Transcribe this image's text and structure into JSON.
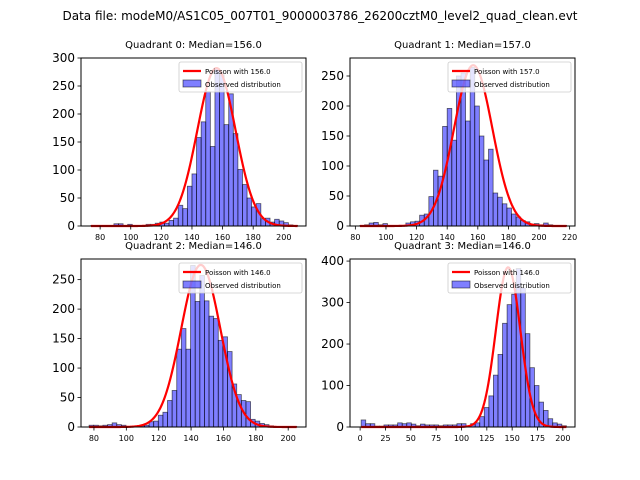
{
  "suptitle": "Data file: modeM0/AS1C05_007T01_9000003786_26200cztM0_level2_quad_clean.evt",
  "chart_data": [
    {
      "type": "bar",
      "title": "Quadrant 0: Median=156.0",
      "xlabel": "",
      "ylabel": "",
      "xlim": [
        67.5,
        214.5
      ],
      "ylim": [
        0,
        300
      ],
      "xticks": [
        80,
        100,
        120,
        140,
        160,
        180,
        200
      ],
      "yticks": [
        0,
        50,
        100,
        150,
        200,
        250,
        300
      ],
      "legend": {
        "position": "top-right",
        "entries": [
          "Poisson with 156.0",
          "Observed distribution"
        ]
      },
      "bin_width": 3,
      "bin_start": 74,
      "counts": [
        1,
        1,
        1,
        1,
        1,
        4,
        4,
        1,
        3,
        1,
        1,
        1,
        3,
        3,
        5,
        7,
        5,
        10,
        14,
        37,
        31,
        71,
        93,
        158,
        186,
        240,
        142,
        281,
        270,
        181,
        236,
        165,
        101,
        74,
        50,
        34,
        40,
        13,
        14,
        7,
        12,
        9,
        6,
        2,
        1
      ],
      "poisson_mean": 156.0,
      "poisson_peak": 282
    },
    {
      "type": "bar",
      "title": "Quadrant 1: Median=157.0",
      "xlabel": "",
      "ylabel": "",
      "xlim": [
        76.5,
        223.5
      ],
      "ylim": [
        0,
        280
      ],
      "xticks": [
        80,
        100,
        120,
        140,
        160,
        180,
        200,
        220
      ],
      "yticks": [
        0,
        50,
        100,
        150,
        200,
        250
      ],
      "legend": {
        "position": "top-right",
        "entries": [
          "Poisson with 157.0",
          "Observed distribution"
        ]
      },
      "bin_width": 3,
      "bin_start": 83,
      "counts": [
        1,
        2,
        5,
        6,
        2,
        4,
        1,
        1,
        1,
        1,
        5,
        7,
        8,
        18,
        20,
        49,
        93,
        83,
        166,
        196,
        143,
        250,
        255,
        175,
        264,
        200,
        150,
        110,
        128,
        55,
        48,
        37,
        30,
        20,
        15,
        9,
        7,
        3,
        4,
        2,
        5,
        2,
        1,
        1,
        1
      ],
      "poisson_mean": 157.0,
      "poisson_peak": 268
    },
    {
      "type": "bar",
      "title": "Quadrant 2: Median=146.0",
      "xlabel": "",
      "ylabel": "",
      "xlim": [
        72.0,
        211.0
      ],
      "ylim": [
        0,
        285
      ],
      "xticks": [
        80,
        100,
        120,
        140,
        160,
        180,
        200
      ],
      "yticks": [
        0,
        50,
        100,
        150,
        200,
        250
      ],
      "legend": {
        "position": "top-right",
        "entries": [
          "Poisson with 146.0",
          "Observed distribution"
        ]
      },
      "bin_width": 2.85,
      "bin_start": 77,
      "counts": [
        3,
        3,
        2,
        3,
        4,
        7,
        4,
        3,
        1,
        1,
        1,
        2,
        3,
        9,
        10,
        20,
        25,
        45,
        62,
        132,
        167,
        132,
        274,
        213,
        257,
        214,
        188,
        184,
        147,
        153,
        128,
        73,
        55,
        45,
        43,
        13,
        10,
        6,
        4,
        2,
        1,
        1,
        1,
        1,
        1
      ],
      "poisson_mean": 146.0,
      "poisson_peak": 275
    },
    {
      "type": "bar",
      "title": "Quadrant 3: Median=146.0",
      "xlabel": "",
      "ylabel": "",
      "xlim": [
        -10.0,
        212.0
      ],
      "ylim": [
        0,
        405
      ],
      "xticks": [
        0,
        25,
        50,
        75,
        100,
        125,
        150,
        175,
        200
      ],
      "yticks": [
        0,
        100,
        200,
        300,
        400
      ],
      "legend": {
        "position": "top-right",
        "entries": [
          "Poisson with 146.0",
          "Observed distribution"
        ]
      },
      "bin_width": 4.5,
      "bin_start": 1,
      "counts": [
        17,
        8,
        8,
        2,
        2,
        5,
        5,
        5,
        10,
        8,
        10,
        7,
        3,
        7,
        5,
        5,
        5,
        3,
        5,
        5,
        5,
        8,
        8,
        3,
        8,
        10,
        25,
        47,
        75,
        125,
        175,
        250,
        295,
        320,
        382,
        335,
        225,
        143,
        100,
        60,
        40,
        20,
        10,
        7,
        3
      ],
      "poisson_mean": 146.0,
      "poisson_peak": 385
    }
  ]
}
